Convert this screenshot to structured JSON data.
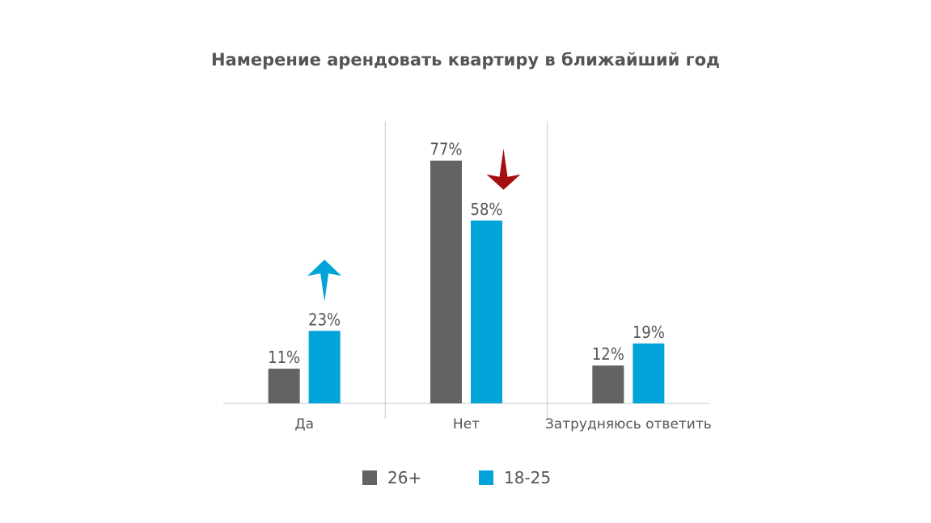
{
  "chart_data": {
    "type": "bar",
    "title": "Намерение арендовать квартиру в ближайший год",
    "categories": [
      "Да",
      "Нет",
      "Затрудняюсь ответить"
    ],
    "series": [
      {
        "name": "26+",
        "values": [
          11,
          77,
          12
        ],
        "labels": [
          "11%",
          "77%",
          "12%"
        ],
        "color": "#636363"
      },
      {
        "name": "18-25",
        "values": [
          23,
          58,
          19
        ],
        "labels": [
          "23%",
          "58%",
          "19%"
        ],
        "color": "#00a4d8"
      }
    ],
    "ylim": [
      0,
      100
    ],
    "grid": false,
    "legend_position": "bottom",
    "annotations": [
      {
        "type": "arrow-up",
        "category": "Да",
        "series": "18-25",
        "color": "#00a4d8"
      },
      {
        "type": "arrow-down",
        "category": "Нет",
        "series": "18-25",
        "color": "#a50f12"
      }
    ]
  }
}
